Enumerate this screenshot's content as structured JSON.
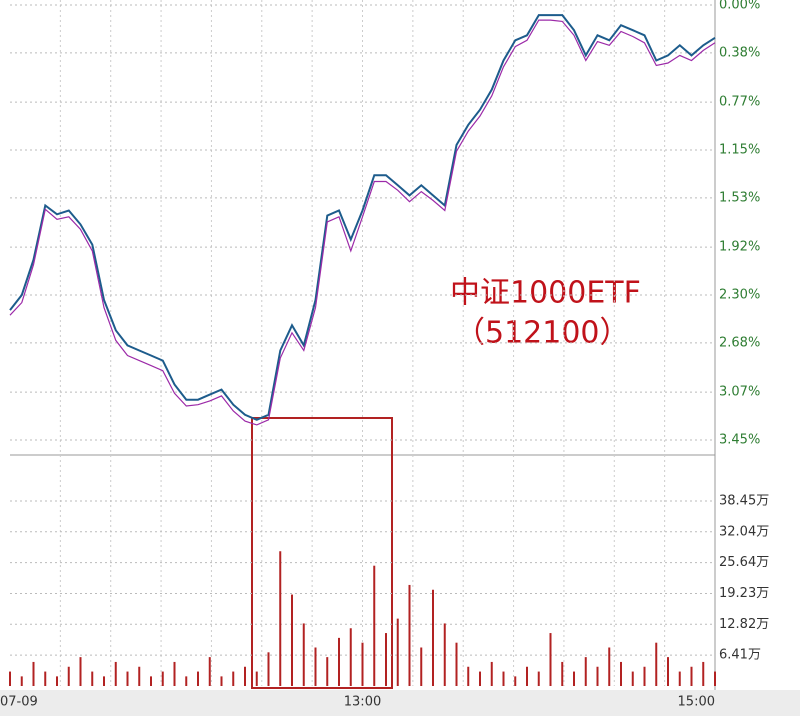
{
  "chart_data": [
    {
      "type": "line",
      "x": [
        0,
        4,
        8,
        12,
        16,
        20,
        24,
        28,
        32,
        36,
        40,
        44,
        48,
        52,
        56,
        60,
        64,
        68,
        72,
        76,
        80,
        84,
        88,
        92,
        96,
        100,
        104,
        108,
        112,
        116,
        120,
        124,
        128,
        132,
        136,
        140,
        144,
        148,
        152,
        156,
        160,
        164,
        168,
        172,
        176,
        180,
        184,
        188,
        192,
        196,
        200,
        204,
        208,
        212,
        216,
        220,
        224,
        228,
        232,
        236,
        240
      ],
      "xlim": [
        0,
        240
      ],
      "ylim": [
        3.45,
        0
      ],
      "yticks": [
        {
          "value": 0,
          "label": "0.00%"
        },
        {
          "value": 0.38,
          "label": "0.38%"
        },
        {
          "value": 0.77,
          "label": "0.77%"
        },
        {
          "value": 1.15,
          "label": "1.15%"
        },
        {
          "value": 1.53,
          "label": "1.53%"
        },
        {
          "value": 1.92,
          "label": "1.92%"
        },
        {
          "value": 2.3,
          "label": "2.30%"
        },
        {
          "value": 2.68,
          "label": "2.68%"
        },
        {
          "value": 3.07,
          "label": "3.07%"
        },
        {
          "value": 3.45,
          "label": "3.45%"
        }
      ],
      "grid": true,
      "annotations": [
        "中证1000ETF",
        "（512100）"
      ],
      "series": [
        {
          "color": "#1d5c8c",
          "values": [
            2.42,
            2.3,
            2.02,
            1.59,
            1.66,
            1.63,
            1.74,
            1.9,
            2.34,
            2.58,
            2.7,
            2.74,
            2.78,
            2.82,
            3.01,
            3.13,
            3.13,
            3.09,
            3.05,
            3.17,
            3.25,
            3.29,
            3.25,
            2.74,
            2.54,
            2.7,
            2.34,
            1.67,
            1.63,
            1.86,
            1.63,
            1.35,
            1.35,
            1.43,
            1.51,
            1.43,
            1.51,
            1.59,
            1.11,
            0.95,
            0.83,
            0.67,
            0.44,
            0.28,
            0.24,
            0.08,
            0.08,
            0.08,
            0.2,
            0.4,
            0.24,
            0.28,
            0.16,
            0.2,
            0.24,
            0.44,
            0.4,
            0.32,
            0.4,
            0.32,
            0.26
          ]
        },
        {
          "color": "#9c2aa8",
          "values": [
            2.46,
            2.36,
            2.06,
            1.62,
            1.7,
            1.68,
            1.78,
            1.95,
            2.4,
            2.66,
            2.78,
            2.82,
            2.86,
            2.9,
            3.08,
            3.18,
            3.17,
            3.14,
            3.1,
            3.22,
            3.3,
            3.33,
            3.29,
            2.8,
            2.6,
            2.74,
            2.4,
            1.72,
            1.68,
            1.95,
            1.68,
            1.4,
            1.4,
            1.47,
            1.56,
            1.48,
            1.55,
            1.63,
            1.16,
            1.0,
            0.88,
            0.72,
            0.49,
            0.33,
            0.28,
            0.12,
            0.12,
            0.13,
            0.24,
            0.44,
            0.29,
            0.32,
            0.21,
            0.25,
            0.3,
            0.48,
            0.46,
            0.4,
            0.44,
            0.36,
            0.3
          ]
        }
      ]
    },
    {
      "type": "bar",
      "x": [
        0,
        4,
        8,
        12,
        16,
        20,
        24,
        28,
        32,
        36,
        40,
        44,
        48,
        52,
        56,
        60,
        64,
        68,
        72,
        76,
        80,
        84,
        88,
        92,
        96,
        100,
        104,
        108,
        112,
        116,
        120,
        124,
        128,
        132,
        136,
        140,
        144,
        148,
        152,
        156,
        160,
        164,
        168,
        172,
        176,
        180,
        184,
        188,
        192,
        196,
        200,
        204,
        208,
        212,
        216,
        220,
        224,
        228,
        232,
        236,
        240
      ],
      "xlim": [
        0,
        240
      ],
      "xticks": [
        {
          "value": 0,
          "label": "07-09"
        },
        {
          "value": 120,
          "label": "13:00"
        },
        {
          "value": 240,
          "label": "15:00"
        }
      ],
      "ylim": [
        0,
        48
      ],
      "yticks": [
        {
          "value": 6.41,
          "label": "6.41万"
        },
        {
          "value": 12.82,
          "label": "12.82万"
        },
        {
          "value": 19.23,
          "label": "19.23万"
        },
        {
          "value": 25.64,
          "label": "25.64万"
        },
        {
          "value": 32.04,
          "label": "32.04万"
        },
        {
          "value": 38.45,
          "label": "38.45万"
        }
      ],
      "color": "#b22222",
      "values": [
        3,
        2,
        5,
        3,
        2,
        4,
        6,
        3,
        2,
        5,
        3,
        4,
        2,
        3,
        5,
        2,
        3,
        6,
        2,
        3,
        4,
        3,
        7,
        28,
        19,
        13,
        8,
        6,
        10,
        12,
        9,
        25,
        11,
        14,
        21,
        8,
        20,
        13,
        9,
        4,
        3,
        5,
        3,
        2,
        4,
        3,
        11,
        5,
        3,
        6,
        4,
        8,
        5,
        3,
        4,
        9,
        6,
        3,
        4,
        5,
        3
      ]
    }
  ]
}
